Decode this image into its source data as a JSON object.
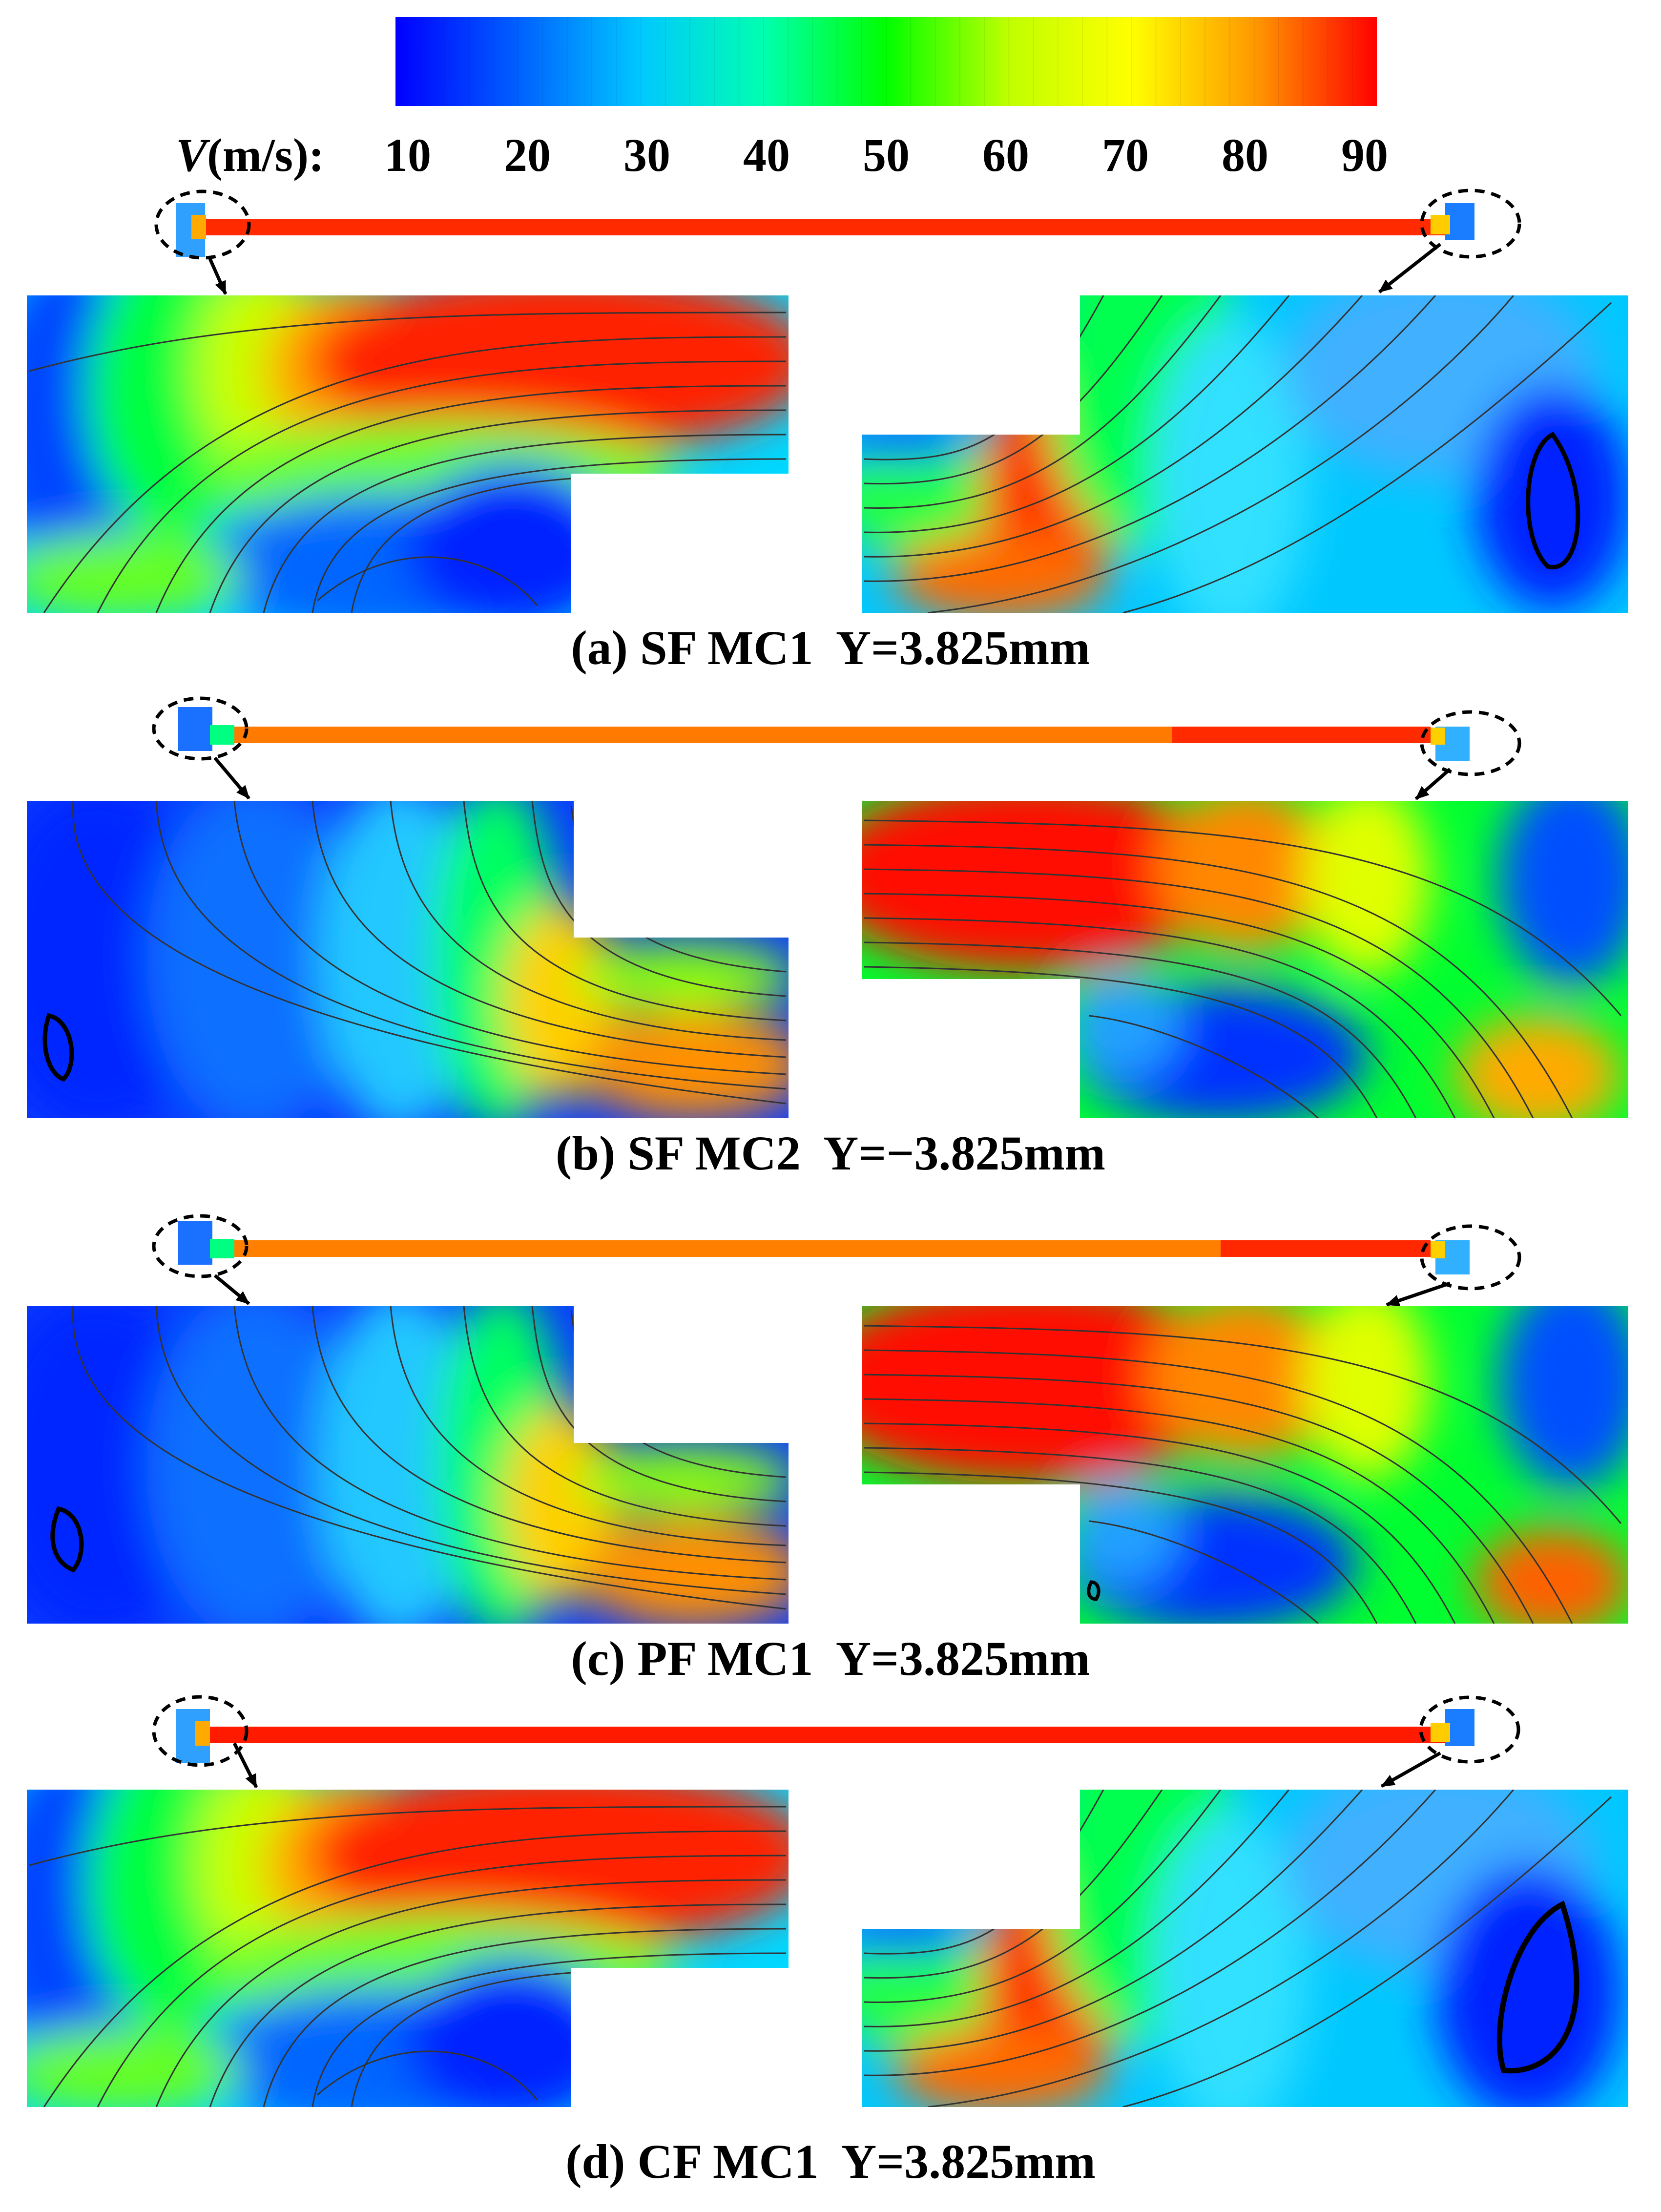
{
  "colorbar": {
    "symbol": "V",
    "unit": "(m/s):",
    "ticks": [
      "10",
      "20",
      "30",
      "40",
      "50",
      "60",
      "70",
      "80",
      "90"
    ],
    "colors": [
      "#0000ff",
      "#0060ff",
      "#00c8ff",
      "#00ffb0",
      "#00ff00",
      "#c0ff00",
      "#ffff00",
      "#ff9900",
      "#ff0000"
    ]
  },
  "panels": [
    {
      "id": "a",
      "caption": "(a) SF MC1  Y=3.825mm",
      "inlet_side": "left"
    },
    {
      "id": "b",
      "caption": "(b) SF MC2  Y=−3.825mm",
      "inlet_side": "right"
    },
    {
      "id": "c",
      "caption": "(c) PF MC1  Y=3.825mm",
      "inlet_side": "right"
    },
    {
      "id": "d",
      "caption": "(d) CF MC1  Y=3.825mm",
      "inlet_side": "left"
    }
  ]
}
